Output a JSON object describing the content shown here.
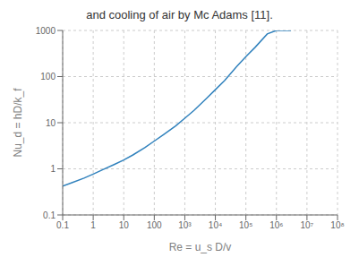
{
  "chart_data": {
    "type": "line",
    "title": "and cooling of air by Mc Adams [11].",
    "x_label": "Re = u_s D/v",
    "y_label": "Nu_d = hD/k_f",
    "x": [
      0.1,
      0.2,
      0.5,
      1.0,
      2.0,
      5.0,
      10.0,
      20.0,
      50.0,
      100.0,
      200.0,
      500.0,
      1000.0,
      2000.0,
      5000.0,
      10000.0,
      20000.0,
      50000.0,
      100000.0,
      200000.0,
      500000.0,
      1000000.0,
      3000000.0
    ],
    "values": [
      0.42,
      0.5,
      0.63,
      0.77,
      0.95,
      1.25,
      1.55,
      2.0,
      2.9,
      4.0,
      5.5,
      8.5,
      12.5,
      18.5,
      33.0,
      52.0,
      82.0,
      165.0,
      270.0,
      430.0,
      840.0,
      1000.0,
      1000.0
    ],
    "xlim": [
      0.1,
      100000000
    ],
    "ylim": [
      0.1,
      1000
    ],
    "xticks": [
      0.1,
      1,
      10,
      100,
      {
        "value": 1000,
        "label": "10³"
      },
      {
        "value": 10000,
        "label": "10⁴"
      },
      {
        "value": 100000,
        "label": "10⁵"
      },
      {
        "value": 1000000,
        "label": "10⁶"
      },
      {
        "value": 10000000,
        "label": "10⁷"
      },
      {
        "value": 100000000,
        "label": "10⁸"
      }
    ],
    "yticks": [
      0.1,
      1,
      10,
      100,
      1000
    ],
    "log": true,
    "grid": true
  }
}
